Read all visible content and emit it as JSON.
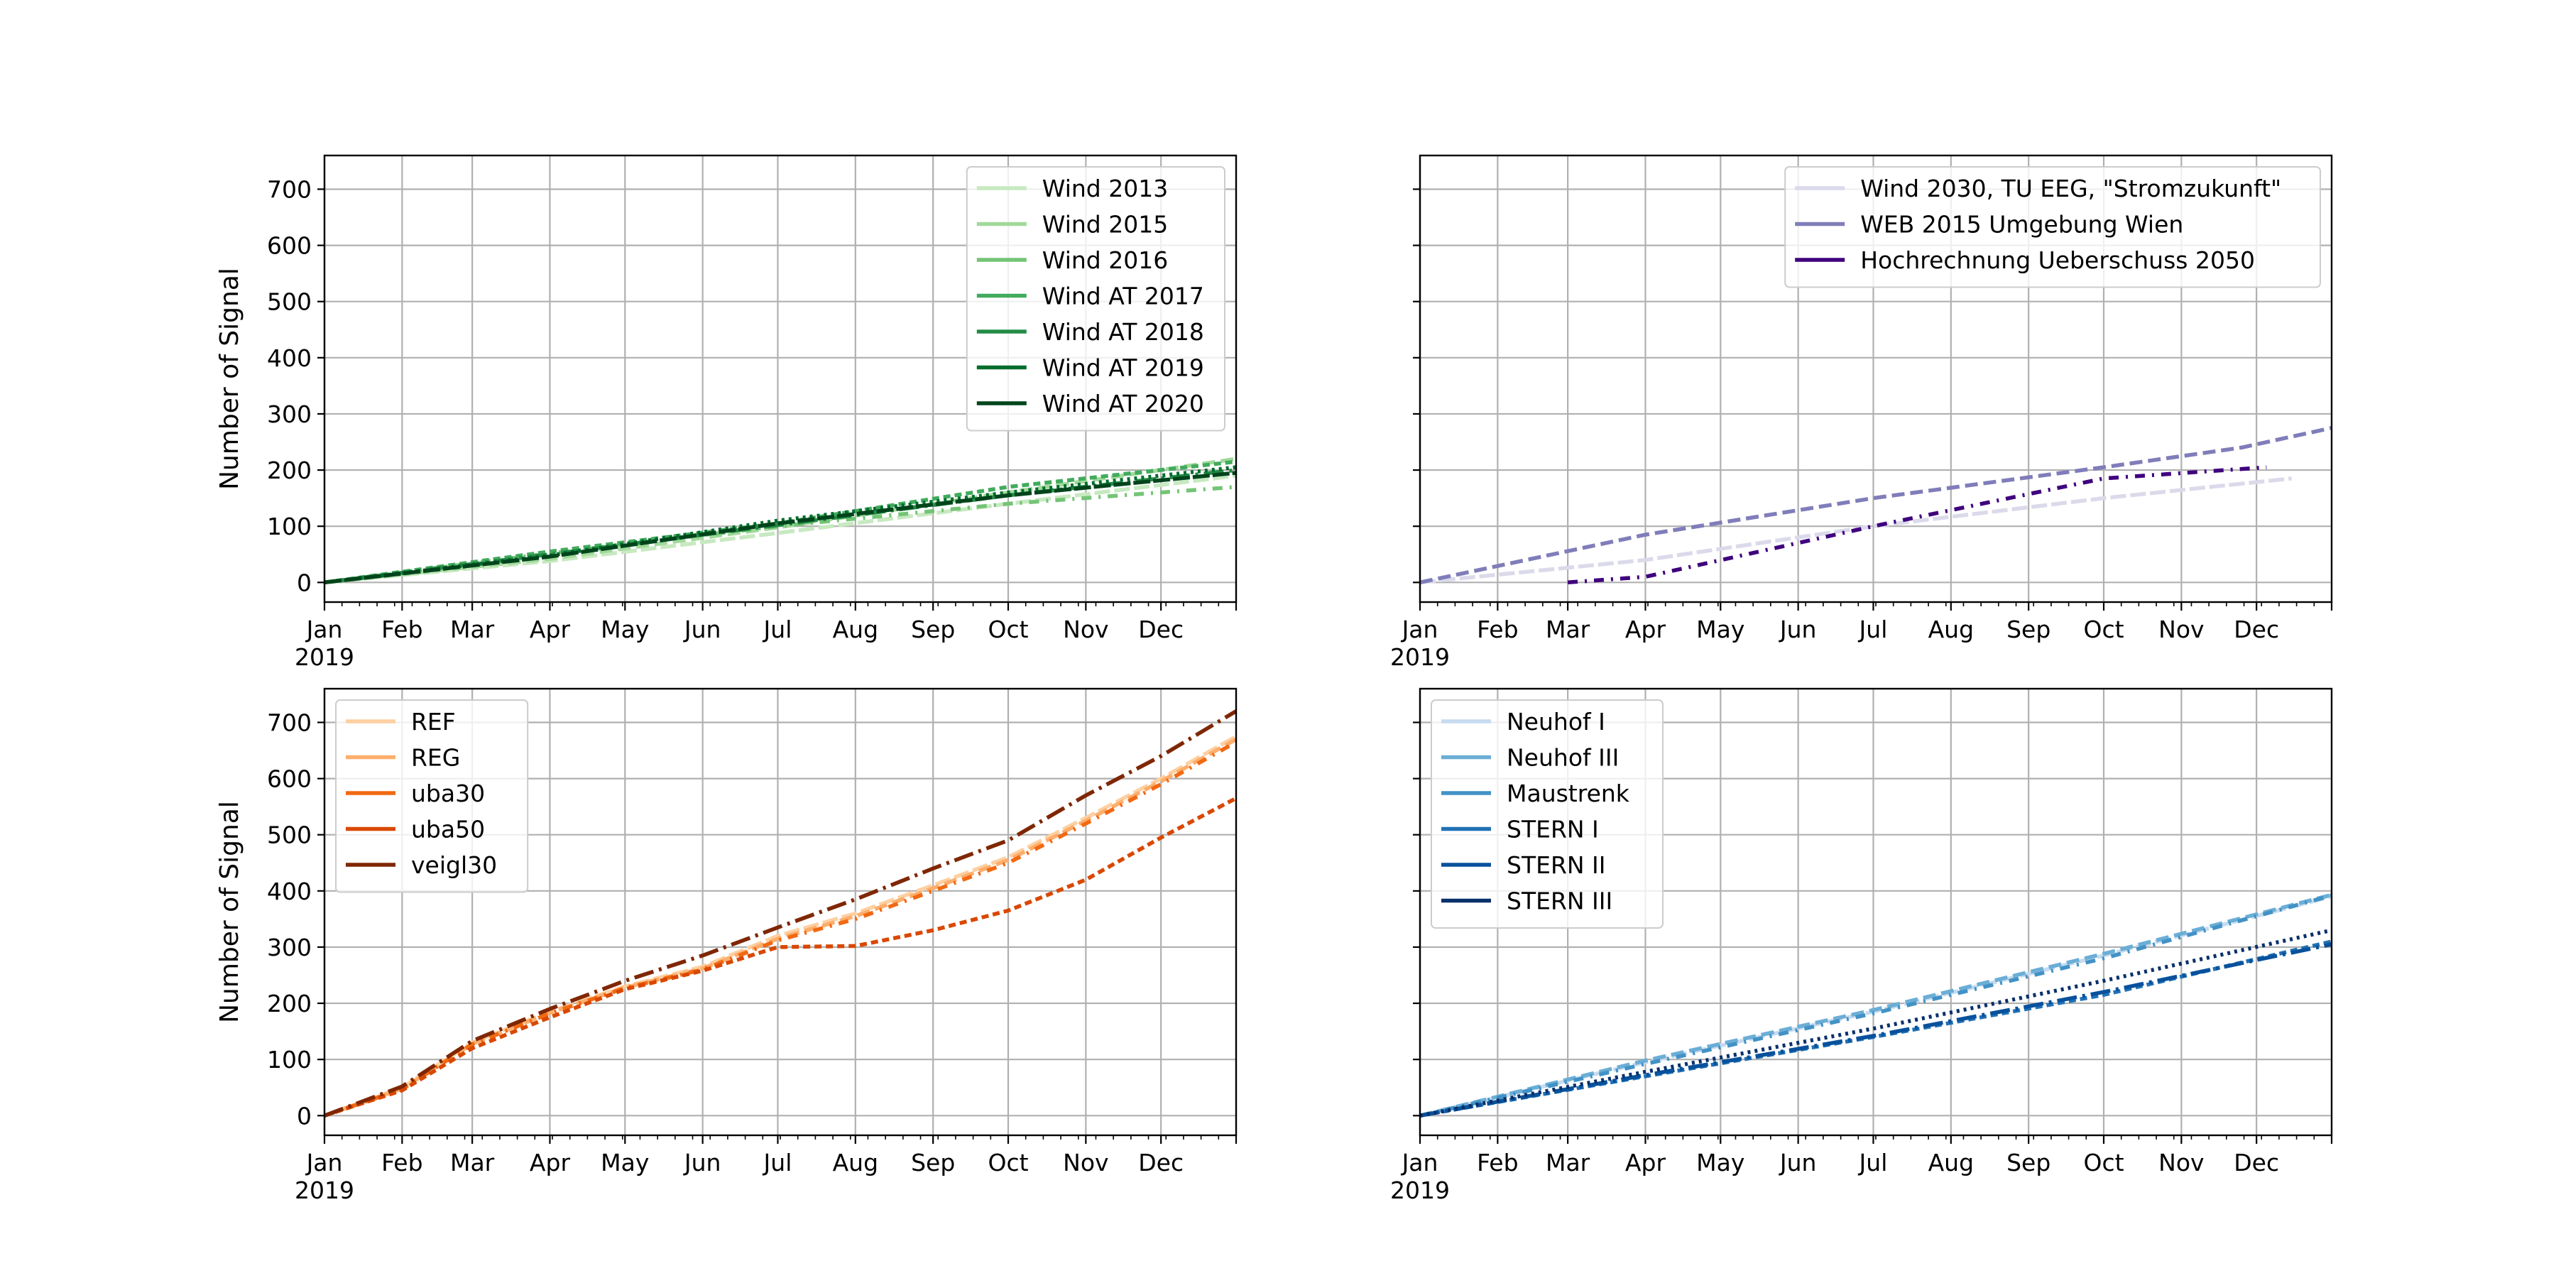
{
  "chart_data": [
    {
      "type": "line",
      "ylabel": "Number of Signal",
      "x_tick_labels": [
        "Jan",
        "Feb",
        "Mar",
        "Apr",
        "May",
        "Jun",
        "Jul",
        "Aug",
        "Sep",
        "Oct",
        "Nov",
        "Dec"
      ],
      "x_year_label": "2019",
      "xlim": [
        "2019-01-01",
        "2019-12-31"
      ],
      "ylim": [
        -35,
        760
      ],
      "yticks": [
        0,
        100,
        200,
        300,
        400,
        500,
        600,
        700
      ],
      "grid": true,
      "legend_position": "upper right",
      "series": [
        {
          "name": "Wind 2013",
          "color": "#c7e9c0",
          "points": [
            [
              "2019-01-01",
              0
            ],
            [
              "2019-04-01",
              38
            ],
            [
              "2019-07-01",
              88
            ],
            [
              "2019-10-01",
              140
            ],
            [
              "2019-12-31",
              190
            ]
          ]
        },
        {
          "name": "Wind 2015",
          "color": "#a1d99b",
          "points": [
            [
              "2019-01-01",
              0
            ],
            [
              "2019-04-01",
              42
            ],
            [
              "2019-07-01",
              98
            ],
            [
              "2019-10-01",
              160
            ],
            [
              "2019-12-31",
              220
            ]
          ]
        },
        {
          "name": "Wind 2016",
          "color": "#74c476",
          "points": [
            [
              "2019-01-01",
              0
            ],
            [
              "2019-04-01",
              52
            ],
            [
              "2019-07-01",
              100
            ],
            [
              "2019-10-01",
              140
            ],
            [
              "2019-12-31",
              170
            ]
          ]
        },
        {
          "name": "Wind AT 2017",
          "color": "#41ab5d",
          "points": [
            [
              "2019-01-01",
              0
            ],
            [
              "2019-04-01",
              55
            ],
            [
              "2019-07-01",
              105
            ],
            [
              "2019-10-01",
              170
            ],
            [
              "2019-12-31",
              215
            ]
          ]
        },
        {
          "name": "Wind AT 2018",
          "color": "#238b45",
          "points": [
            [
              "2019-01-01",
              0
            ],
            [
              "2019-04-01",
              50
            ],
            [
              "2019-07-01",
              102
            ],
            [
              "2019-10-01",
              155
            ],
            [
              "2019-12-31",
              200
            ]
          ]
        },
        {
          "name": "Wind AT 2019",
          "color": "#006d2c",
          "points": [
            [
              "2019-01-01",
              0
            ],
            [
              "2019-04-01",
              48
            ],
            [
              "2019-07-01",
              110
            ],
            [
              "2019-10-01",
              160
            ],
            [
              "2019-12-31",
              205
            ]
          ]
        },
        {
          "name": "Wind AT 2020",
          "color": "#00441b",
          "points": [
            [
              "2019-01-01",
              0
            ],
            [
              "2019-04-01",
              46
            ],
            [
              "2019-07-01",
              105
            ],
            [
              "2019-10-01",
              155
            ],
            [
              "2019-12-31",
              195
            ]
          ]
        }
      ]
    },
    {
      "type": "line",
      "ylabel": "",
      "x_tick_labels": [
        "Jan",
        "Feb",
        "Mar",
        "Apr",
        "May",
        "Jun",
        "Jul",
        "Aug",
        "Sep",
        "Oct",
        "Nov",
        "Dec"
      ],
      "x_year_label": "2019",
      "xlim": [
        "2019-01-01",
        "2019-12-31"
      ],
      "ylim": [
        -35,
        760
      ],
      "yticks": [
        0,
        100,
        200,
        300,
        400,
        500,
        600,
        700
      ],
      "grid": true,
      "legend_position": "upper right",
      "series": [
        {
          "name": "Wind 2030, TU EEG, \"Stromzukunft\"",
          "color": "#dadaeb",
          "points": [
            [
              "2019-01-01",
              0
            ],
            [
              "2019-04-01",
              40
            ],
            [
              "2019-07-01",
              100
            ],
            [
              "2019-10-01",
              150
            ],
            [
              "2019-12-15",
              185
            ]
          ]
        },
        {
          "name": "WEB 2015 Umgebung Wien",
          "color": "#807dba",
          "points": [
            [
              "2019-01-01",
              0
            ],
            [
              "2019-04-01",
              85
            ],
            [
              "2019-07-01",
              150
            ],
            [
              "2019-10-01",
              205
            ],
            [
              "2019-11-25",
              240
            ],
            [
              "2019-12-31",
              275
            ]
          ]
        },
        {
          "name": "Hochrechnung Ueberschuss 2050",
          "color": "#3f007d",
          "points": [
            [
              "2019-03-01",
              0
            ],
            [
              "2019-04-01",
              10
            ],
            [
              "2019-07-01",
              100
            ],
            [
              "2019-10-01",
              185
            ],
            [
              "2019-12-05",
              205
            ]
          ]
        }
      ]
    },
    {
      "type": "line",
      "ylabel": "Number of Signal",
      "x_tick_labels": [
        "Jan",
        "Feb",
        "Mar",
        "Apr",
        "May",
        "Jun",
        "Jul",
        "Aug",
        "Sep",
        "Oct",
        "Nov",
        "Dec"
      ],
      "x_year_label": "2019",
      "xlim": [
        "2019-01-01",
        "2019-12-31"
      ],
      "ylim": [
        -35,
        760
      ],
      "yticks": [
        0,
        100,
        200,
        300,
        400,
        500,
        600,
        700
      ],
      "grid": true,
      "legend_position": "upper left",
      "series": [
        {
          "name": "REF",
          "color": "#fdd0a2",
          "points": [
            [
              "2019-01-01",
              0
            ],
            [
              "2019-02-01",
              50
            ],
            [
              "2019-03-01",
              130
            ],
            [
              "2019-04-01",
              185
            ],
            [
              "2019-05-01",
              230
            ],
            [
              "2019-06-01",
              265
            ],
            [
              "2019-07-01",
              320
            ],
            [
              "2019-08-01",
              360
            ],
            [
              "2019-09-01",
              410
            ],
            [
              "2019-10-01",
              460
            ],
            [
              "2019-11-01",
              530
            ],
            [
              "2019-12-01",
              600
            ],
            [
              "2019-12-31",
              675
            ]
          ]
        },
        {
          "name": "REG",
          "color": "#fdae6b",
          "points": [
            [
              "2019-01-01",
              0
            ],
            [
              "2019-02-01",
              48
            ],
            [
              "2019-03-01",
              128
            ],
            [
              "2019-04-01",
              183
            ],
            [
              "2019-05-01",
              228
            ],
            [
              "2019-06-01",
              262
            ],
            [
              "2019-07-01",
              315
            ],
            [
              "2019-08-01",
              355
            ],
            [
              "2019-09-01",
              405
            ],
            [
              "2019-10-01",
              455
            ],
            [
              "2019-11-01",
              525
            ],
            [
              "2019-12-01",
              595
            ],
            [
              "2019-12-31",
              670
            ]
          ]
        },
        {
          "name": "uba30",
          "color": "#f16913",
          "points": [
            [
              "2019-01-01",
              0
            ],
            [
              "2019-02-01",
              47
            ],
            [
              "2019-03-01",
              127
            ],
            [
              "2019-04-01",
              182
            ],
            [
              "2019-05-01",
              227
            ],
            [
              "2019-06-01",
              260
            ],
            [
              "2019-07-01",
              312
            ],
            [
              "2019-08-01",
              350
            ],
            [
              "2019-09-01",
              400
            ],
            [
              "2019-10-01",
              450
            ],
            [
              "2019-11-01",
              520
            ],
            [
              "2019-12-01",
              590
            ],
            [
              "2019-12-31",
              665
            ]
          ]
        },
        {
          "name": "uba50",
          "color": "#d94801",
          "points": [
            [
              "2019-01-01",
              0
            ],
            [
              "2019-02-01",
              45
            ],
            [
              "2019-03-01",
              120
            ],
            [
              "2019-04-01",
              175
            ],
            [
              "2019-05-01",
              225
            ],
            [
              "2019-06-01",
              258
            ],
            [
              "2019-07-01",
              300
            ],
            [
              "2019-08-01",
              302
            ],
            [
              "2019-09-01",
              330
            ],
            [
              "2019-10-01",
              365
            ],
            [
              "2019-11-01",
              420
            ],
            [
              "2019-12-01",
              495
            ],
            [
              "2019-12-31",
              565
            ]
          ]
        },
        {
          "name": "veigl30",
          "color": "#7f2704",
          "points": [
            [
              "2019-01-01",
              0
            ],
            [
              "2019-02-01",
              52
            ],
            [
              "2019-03-01",
              133
            ],
            [
              "2019-04-01",
              190
            ],
            [
              "2019-05-01",
              240
            ],
            [
              "2019-06-01",
              285
            ],
            [
              "2019-07-01",
              335
            ],
            [
              "2019-08-01",
              385
            ],
            [
              "2019-09-01",
              440
            ],
            [
              "2019-10-01",
              490
            ],
            [
              "2019-11-01",
              570
            ],
            [
              "2019-12-01",
              640
            ],
            [
              "2019-12-31",
              720
            ]
          ]
        }
      ]
    },
    {
      "type": "line",
      "ylabel": "",
      "x_tick_labels": [
        "Jan",
        "Feb",
        "Mar",
        "Apr",
        "May",
        "Jun",
        "Jul",
        "Aug",
        "Sep",
        "Oct",
        "Nov",
        "Dec"
      ],
      "x_year_label": "2019",
      "xlim": [
        "2019-01-01",
        "2019-12-31"
      ],
      "ylim": [
        -35,
        760
      ],
      "yticks": [
        0,
        100,
        200,
        300,
        400,
        500,
        600,
        700
      ],
      "grid": true,
      "legend_position": "upper left",
      "series": [
        {
          "name": "Neuhof I",
          "color": "#c6dbef",
          "points": [
            [
              "2019-01-01",
              0
            ],
            [
              "2019-04-01",
              95
            ],
            [
              "2019-07-01",
              185
            ],
            [
              "2019-10-01",
              285
            ],
            [
              "2019-12-31",
              390
            ]
          ]
        },
        {
          "name": "Neuhof III",
          "color": "#6baed6",
          "points": [
            [
              "2019-01-01",
              0
            ],
            [
              "2019-04-01",
              98
            ],
            [
              "2019-07-01",
              188
            ],
            [
              "2019-10-01",
              288
            ],
            [
              "2019-12-31",
              393
            ]
          ]
        },
        {
          "name": "Maustrenk",
          "color": "#4292c6",
          "points": [
            [
              "2019-01-01",
              0
            ],
            [
              "2019-04-01",
              92
            ],
            [
              "2019-07-01",
              182
            ],
            [
              "2019-10-01",
              280
            ],
            [
              "2019-12-31",
              392
            ]
          ]
        },
        {
          "name": "STERN I",
          "color": "#2171b5",
          "points": [
            [
              "2019-01-01",
              0
            ],
            [
              "2019-04-01",
              70
            ],
            [
              "2019-07-01",
              140
            ],
            [
              "2019-10-01",
              215
            ],
            [
              "2019-12-31",
              310
            ]
          ]
        },
        {
          "name": "STERN II",
          "color": "#08519c",
          "points": [
            [
              "2019-01-01",
              0
            ],
            [
              "2019-04-01",
              72
            ],
            [
              "2019-07-01",
              142
            ],
            [
              "2019-10-01",
              220
            ],
            [
              "2019-12-31",
              305
            ]
          ]
        },
        {
          "name": "STERN III",
          "color": "#08306b",
          "points": [
            [
              "2019-01-01",
              0
            ],
            [
              "2019-04-01",
              78
            ],
            [
              "2019-07-01",
              155
            ],
            [
              "2019-10-01",
              240
            ],
            [
              "2019-12-31",
              330
            ]
          ]
        }
      ]
    }
  ]
}
